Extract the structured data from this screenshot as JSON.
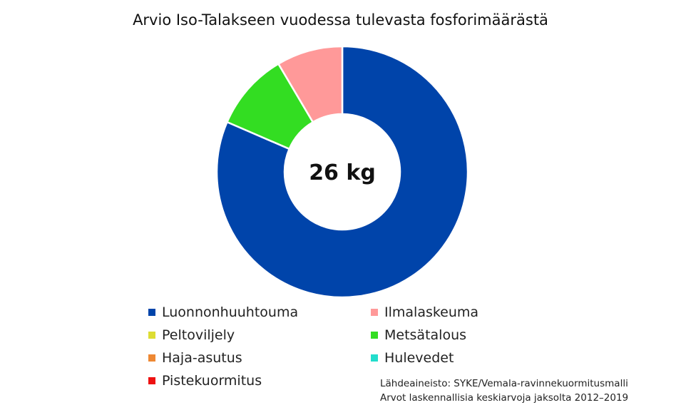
{
  "chart_data": {
    "type": "pie",
    "variant": "donut",
    "title": "Arvio Iso-Talakseen vuodessa tulevasta fosforimäärästä",
    "center_label": "26 kg",
    "start_angle": "top",
    "direction": "clockwise",
    "categories": [
      "Luonnonhuuhtouma",
      "Ilmalaskeuma",
      "Peltoviljely",
      "Metsätalous",
      "Haja-asutus",
      "Hulevedet",
      "Pistekuormitus"
    ],
    "values": [
      81.5,
      8.5,
      0,
      10,
      0,
      0,
      0
    ],
    "colors": [
      "#0044AA",
      "#FF9999",
      "#DDDD33",
      "#33DD22",
      "#EE8833",
      "#22DDCC",
      "#EE1111"
    ],
    "legend_position": "bottom",
    "source_lines": [
      "Lähdeaineisto: SYKE/Vemala-ravinnekuormitusmalli",
      "Arvot laskennallisia keskiarvoja jaksolta 2012–2019"
    ]
  }
}
